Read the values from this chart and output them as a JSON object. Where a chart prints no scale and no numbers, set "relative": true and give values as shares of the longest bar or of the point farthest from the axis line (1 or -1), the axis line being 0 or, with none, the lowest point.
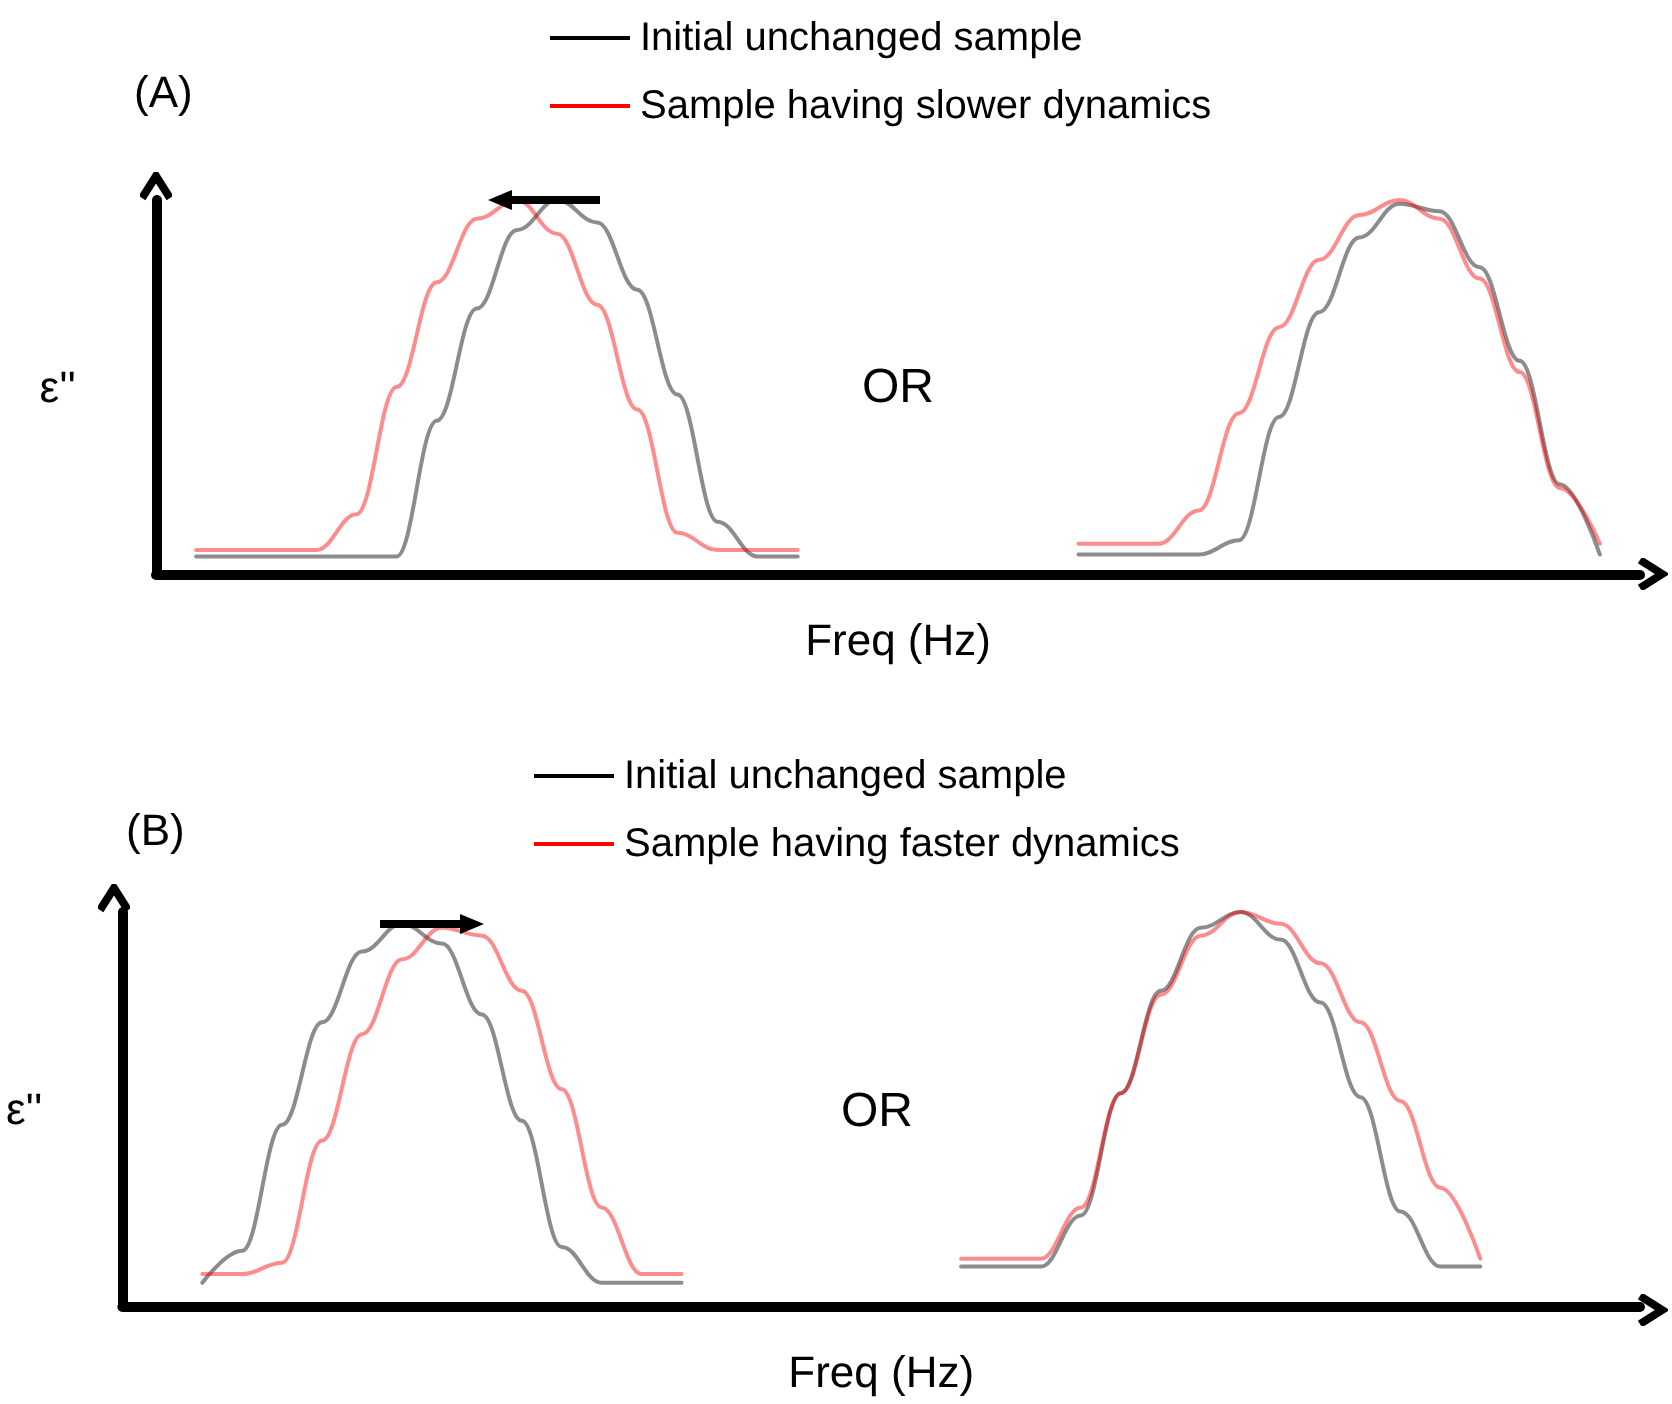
{
  "chart_data": [
    {
      "type": "line",
      "title": "(A)",
      "xlabel": "Freq (Hz)",
      "ylabel": "ε''",
      "relative": true,
      "marker": "none",
      "legend": "top",
      "annotations": [
        "OR"
      ],
      "categories": [
        null,
        null,
        null,
        null,
        null,
        null,
        null,
        null,
        null,
        null,
        null,
        null,
        null,
        null,
        null,
        null,
        null,
        null,
        null,
        null,
        null,
        null,
        null,
        null,
        null,
        null,
        null,
        null,
        null,
        null,
        null,
        null,
        null,
        null,
        null,
        null,
        null,
        null
      ],
      "series": [
        {
          "name": "Initial unchanged sample",
          "color": "#000000",
          "values": [
            null,
            0.047,
            0.047,
            0.047,
            0.047,
            0.047,
            0.047,
            0.41,
            0.71,
            0.92,
            1.0,
            0.94,
            0.76,
            0.48,
            0.14,
            0.047,
            0.047,
            null,
            null,
            null,
            null,
            null,
            null,
            null,
            null,
            null,
            null,
            null,
            null,
            null,
            null,
            null,
            null,
            null,
            null,
            null,
            null,
            null
          ]
        },
        {
          "name": "Sample having slower dynamics",
          "color": "#ff0000",
          "values": [
            null,
            0.064,
            0.064,
            0.064,
            0.064,
            0.16,
            0.5,
            0.78,
            0.95,
            1.0,
            0.91,
            0.72,
            0.44,
            0.11,
            0.064,
            0.064,
            0.064,
            null,
            null,
            null,
            null,
            null,
            null,
            null,
            null,
            null,
            null,
            null,
            null,
            null,
            null,
            null,
            null,
            null,
            null,
            null,
            null,
            null
          ]
        },
        {
          "color": "#000000",
          "values": [
            null,
            null,
            null,
            null,
            null,
            null,
            null,
            null,
            null,
            null,
            null,
            null,
            null,
            null,
            null,
            null,
            null,
            null,
            null,
            null,
            null,
            null,
            null,
            0.052,
            0.052,
            0.052,
            0.052,
            0.09,
            0.42,
            0.7,
            0.9,
            0.99,
            0.97,
            0.82,
            0.57,
            0.24,
            0.052,
            null
          ]
        },
        {
          "color": "#ff0000",
          "values": [
            null,
            null,
            null,
            null,
            null,
            null,
            null,
            null,
            null,
            null,
            null,
            null,
            null,
            null,
            null,
            null,
            null,
            null,
            null,
            null,
            null,
            null,
            null,
            0.081,
            0.081,
            0.081,
            0.17,
            0.43,
            0.66,
            0.84,
            0.96,
            1.0,
            0.95,
            0.79,
            0.54,
            0.23,
            0.081,
            null
          ]
        }
      ]
    },
    {
      "type": "line",
      "title": "(B)",
      "xlabel": "Freq (Hz)",
      "ylabel": "ε''",
      "relative": true,
      "marker": "none",
      "legend": "top",
      "annotations": [
        "OR"
      ],
      "categories": [
        null,
        null,
        null,
        null,
        null,
        null,
        null,
        null,
        null,
        null,
        null,
        null,
        null,
        null,
        null,
        null,
        null,
        null,
        null,
        null,
        null,
        null,
        null,
        null,
        null,
        null,
        null,
        null,
        null,
        null,
        null,
        null,
        null,
        null,
        null,
        null,
        null,
        null,
        null
      ],
      "series": [
        {
          "name": "Initial unchanged sample",
          "color": "#000000",
          "values": [
            null,
            null,
            0.059,
            0.14,
            0.46,
            0.72,
            0.9,
            0.97,
            0.92,
            0.74,
            0.47,
            0.15,
            0.059,
            0.059,
            0.059,
            null,
            null,
            null,
            null,
            null,
            null,
            null,
            null,
            null,
            null,
            null,
            null,
            null,
            null,
            null,
            null,
            null,
            null,
            null,
            null,
            null,
            null,
            null,
            null
          ]
        },
        {
          "name": "Sample having faster dynamics",
          "color": "#ff0000",
          "values": [
            null,
            null,
            0.081,
            0.081,
            0.11,
            0.42,
            0.69,
            0.88,
            0.96,
            0.94,
            0.8,
            0.55,
            0.25,
            0.081,
            0.081,
            null,
            null,
            null,
            null,
            null,
            null,
            null,
            null,
            null,
            null,
            null,
            null,
            null,
            null,
            null,
            null,
            null,
            null,
            null,
            null,
            null,
            null,
            null,
            null
          ]
        },
        {
          "color": "#000000",
          "values": [
            null,
            null,
            null,
            null,
            null,
            null,
            null,
            null,
            null,
            null,
            null,
            null,
            null,
            null,
            null,
            null,
            null,
            null,
            null,
            null,
            null,
            0.1,
            0.1,
            0.1,
            0.23,
            0.54,
            0.8,
            0.96,
            1.0,
            0.93,
            0.77,
            0.53,
            0.24,
            0.1,
            0.1,
            null,
            null,
            null,
            null
          ]
        },
        {
          "color": "#ff0000",
          "values": [
            null,
            null,
            null,
            null,
            null,
            null,
            null,
            null,
            null,
            null,
            null,
            null,
            null,
            null,
            null,
            null,
            null,
            null,
            null,
            null,
            null,
            0.12,
            0.12,
            0.12,
            0.25,
            0.54,
            0.79,
            0.94,
            1.0,
            0.97,
            0.87,
            0.72,
            0.52,
            0.3,
            0.12,
            null,
            null,
            null,
            null
          ]
        }
      ]
    }
  ]
}
